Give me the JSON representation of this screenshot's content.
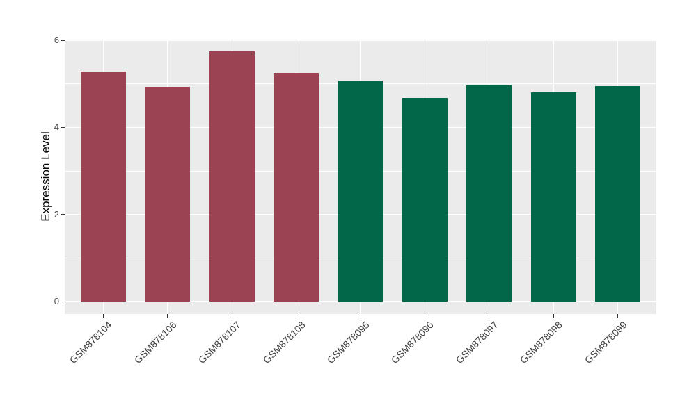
{
  "figure": {
    "background": "#FFFFFF",
    "panel_background": "#EBEBEB",
    "gridline_color": "#FFFFFF",
    "tick_color": "#333333",
    "axis_text_color": "#404040"
  },
  "chart_data": {
    "type": "bar",
    "title": "",
    "xlabel": "",
    "ylabel": "Expression Level",
    "categories": [
      "GSM878104",
      "GSM878106",
      "GSM878107",
      "GSM878108",
      "GSM878095",
      "GSM878096",
      "GSM878097",
      "GSM878098",
      "GSM878099"
    ],
    "values": [
      5.28,
      4.93,
      5.74,
      5.25,
      5.07,
      4.68,
      4.97,
      4.8,
      4.94
    ],
    "bar_colors": [
      "#9B4352",
      "#9B4352",
      "#9B4352",
      "#9B4352",
      "#026749",
      "#026749",
      "#026749",
      "#026749",
      "#026749"
    ],
    "group_colors": {
      "maroon": "#9B4352",
      "green": "#026749"
    },
    "ylim": [
      0,
      6
    ],
    "yticks": [
      0,
      2,
      4,
      6
    ],
    "minor_yticks": [
      1,
      3,
      5
    ],
    "grid": true,
    "legend_position": "none",
    "bar_width_fraction": 0.7,
    "x_tick_rotation_deg": 45
  }
}
